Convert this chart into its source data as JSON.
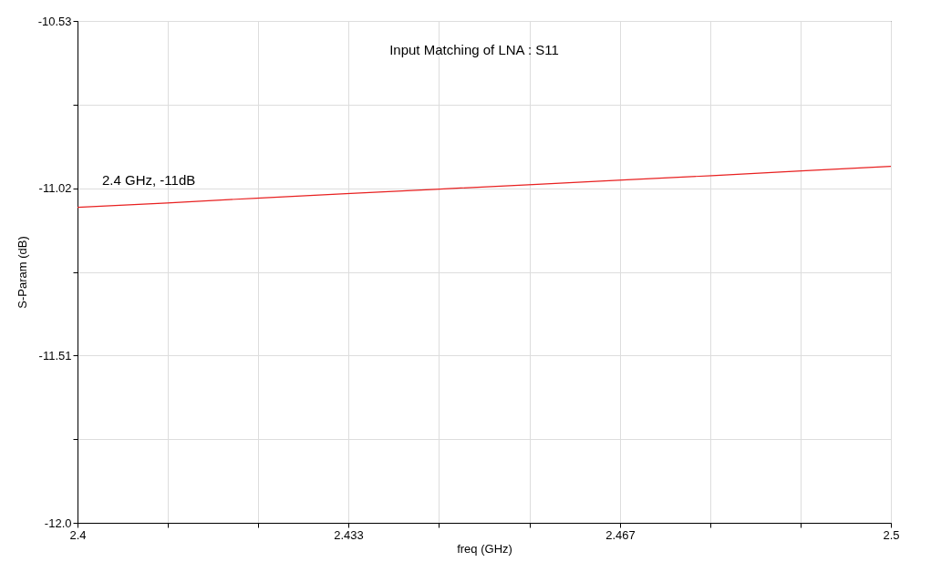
{
  "chart_data": {
    "type": "line",
    "title": "Input Matching of LNA : S11",
    "xlabel": "freq (GHz)",
    "ylabel": "S-Param (dB)",
    "x": [
      2.4,
      2.411,
      2.422,
      2.433,
      2.444,
      2.456,
      2.467,
      2.478,
      2.489,
      2.5
    ],
    "series": [
      {
        "color": "#e82020",
        "values": [
          -11.076,
          -11.063,
          -11.049,
          -11.036,
          -11.023,
          -11.009,
          -10.996,
          -10.983,
          -10.969,
          -10.956
        ]
      }
    ],
    "xlim": [
      2.4,
      2.5
    ],
    "xticks": [
      2.4,
      {
        "value": 2.4111,
        "label": null
      },
      {
        "value": 2.4222,
        "label": null
      },
      {
        "value": 2.4333,
        "label": "2.433"
      },
      {
        "value": 2.4444,
        "label": null
      },
      {
        "value": 2.4556,
        "label": null
      },
      {
        "value": 2.4667,
        "label": "2.467"
      },
      {
        "value": 2.4778,
        "label": null
      },
      {
        "value": 2.4889,
        "label": null
      },
      2.5
    ],
    "ylim": [
      -12,
      -10.53
    ],
    "yticks": [
      {
        "value": -12,
        "label": "-12.0"
      },
      {
        "value": -11.755,
        "label": null
      },
      -11.51,
      {
        "value": -11.265,
        "label": null
      },
      -11.02,
      {
        "value": -10.775,
        "label": null
      },
      -10.53
    ],
    "annotations": [
      "2.4 GHz,  -11dB"
    ],
    "grid": true,
    "legend": false,
    "marker": "none",
    "line_style": "solid"
  }
}
